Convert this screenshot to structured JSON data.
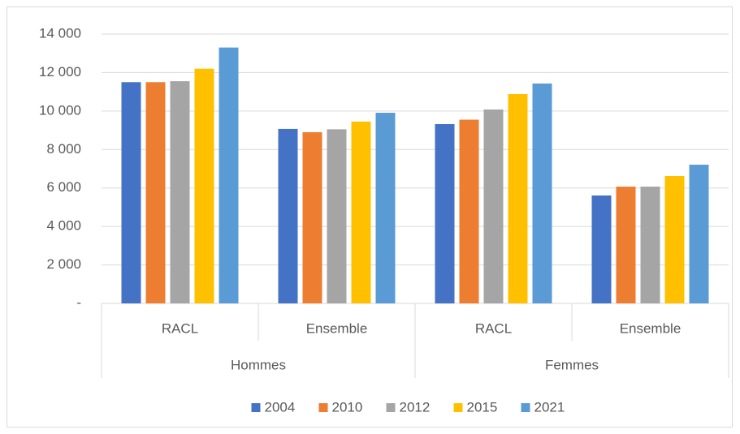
{
  "chart_data": {
    "type": "bar",
    "categories": [
      "RACL",
      "Ensemble",
      "RACL",
      "Ensemble"
    ],
    "category_groups": [
      "Hommes",
      "Femmes"
    ],
    "series": [
      {
        "name": "2004",
        "color": "#4472c4",
        "values": [
          11500,
          9070,
          9320,
          5610
        ]
      },
      {
        "name": "2010",
        "color": "#ed7d31",
        "values": [
          11500,
          8900,
          9550,
          6070
        ]
      },
      {
        "name": "2012",
        "color": "#a5a5a5",
        "values": [
          11550,
          9050,
          10080,
          6070
        ]
      },
      {
        "name": "2015",
        "color": "#ffc000",
        "values": [
          12200,
          9450,
          10880,
          6620
        ]
      },
      {
        "name": "2021",
        "color": "#5b9bd5",
        "values": [
          13300,
          9910,
          11430,
          7210
        ]
      }
    ],
    "ylim": [
      0,
      14000
    ],
    "yticks": [
      {
        "value": 0,
        "label": "-"
      },
      {
        "value": 2000,
        "label": "2 000"
      },
      {
        "value": 4000,
        "label": "4 000"
      },
      {
        "value": 6000,
        "label": "6 000"
      },
      {
        "value": 8000,
        "label": "8 000"
      },
      {
        "value": 10000,
        "label": "10 000"
      },
      {
        "value": 12000,
        "label": "12 000"
      },
      {
        "value": 14000,
        "label": "14 000"
      }
    ],
    "grid": true,
    "legend": "bottom"
  }
}
